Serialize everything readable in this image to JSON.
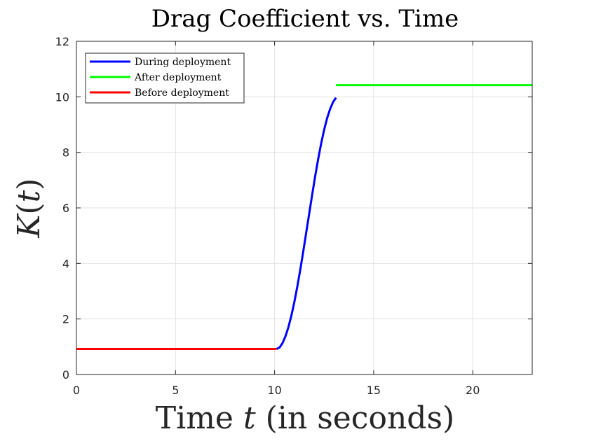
{
  "chart_data": {
    "type": "line",
    "title": "Drag Coefficient vs. Time",
    "xlabel_main": "Time ",
    "xlabel_var": "t",
    "xlabel_rest": " (in seconds)",
    "ylabel_var": "K",
    "ylabel_arg": "t",
    "xlim": [
      0,
      23
    ],
    "ylim": [
      0,
      12
    ],
    "xticks": [
      0,
      5,
      10,
      15,
      20
    ],
    "yticks": [
      0,
      2,
      4,
      6,
      8,
      10,
      12
    ],
    "xtick_labels": [
      "0",
      "5",
      "10",
      "15",
      "20"
    ],
    "ytick_labels": [
      "0",
      "2",
      "4",
      "6",
      "8",
      "10",
      "12"
    ],
    "grid": true,
    "legend_position": "top-left",
    "series": [
      {
        "name": "During deployment",
        "color": "#0000ff",
        "x": [
          10.1,
          10.25,
          10.4,
          10.55,
          10.7,
          10.85,
          11.0,
          11.15,
          11.3,
          11.45,
          11.6,
          11.75,
          11.9,
          12.05,
          12.2,
          12.35,
          12.5,
          12.65,
          12.8,
          12.95,
          13.1
        ],
        "y": [
          0.92,
          0.97,
          1.13,
          1.38,
          1.71,
          2.13,
          2.62,
          3.18,
          3.79,
          4.45,
          5.13,
          5.81,
          6.49,
          7.15,
          7.76,
          8.32,
          8.81,
          9.23,
          9.56,
          9.81,
          9.97
        ]
      },
      {
        "name": "After deployment",
        "color": "#00ff00",
        "x": [
          13.1,
          23.0
        ],
        "y": [
          10.42,
          10.42
        ]
      },
      {
        "name": "Before deployment",
        "color": "#ff0000",
        "x": [
          0.0,
          10.1
        ],
        "y": [
          0.92,
          0.92
        ]
      }
    ]
  }
}
